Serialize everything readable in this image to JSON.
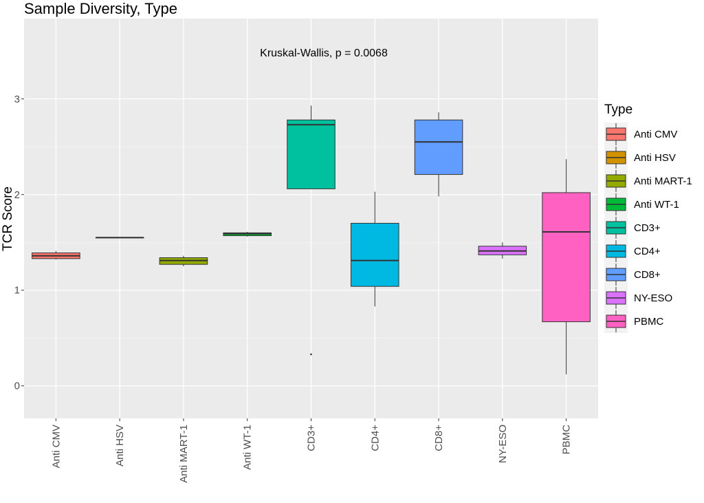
{
  "chart_data": {
    "type": "boxplot",
    "title": "Sample Diversity, Type",
    "xlabel": "",
    "ylabel": "TCR Score",
    "ylim": [
      -0.34,
      3.84
    ],
    "yticks": [
      0,
      1,
      2,
      3
    ],
    "annotation": "Kruskal-Wallis, p = 0.0068",
    "legend_title": "Type",
    "legend_position": "right",
    "grid": true,
    "categories": [
      "Anti CMV",
      "Anti HSV",
      "Anti MART-1",
      "Anti WT-1",
      "CD3+",
      "CD4+",
      "CD8+",
      "NY-ESO",
      "PBMC"
    ],
    "colors": [
      "#F8766D",
      "#D39200",
      "#93AA00",
      "#00BA38",
      "#00C19F",
      "#00B9E3",
      "#619CFF",
      "#DB72FB",
      "#FF61C3"
    ],
    "boxes": [
      {
        "name": "Anti CMV",
        "min": 1.32,
        "q1": 1.33,
        "median": 1.36,
        "q3": 1.39,
        "max": 1.41,
        "outliers": []
      },
      {
        "name": "Anti HSV",
        "min": 1.55,
        "q1": 1.55,
        "median": 1.55,
        "q3": 1.55,
        "max": 1.55,
        "outliers": []
      },
      {
        "name": "Anti MART-1",
        "min": 1.25,
        "q1": 1.27,
        "median": 1.31,
        "q3": 1.34,
        "max": 1.36,
        "outliers": []
      },
      {
        "name": "Anti WT-1",
        "min": 1.56,
        "q1": 1.57,
        "median": 1.59,
        "q3": 1.6,
        "max": 1.61,
        "outliers": []
      },
      {
        "name": "CD3+",
        "min": 2.06,
        "q1": 2.06,
        "median": 2.73,
        "q3": 2.78,
        "max": 2.93,
        "outliers": [
          0.33
        ]
      },
      {
        "name": "CD4+",
        "min": 0.83,
        "q1": 1.04,
        "median": 1.31,
        "q3": 1.7,
        "max": 2.03,
        "outliers": []
      },
      {
        "name": "CD8+",
        "min": 1.98,
        "q1": 2.21,
        "median": 2.55,
        "q3": 2.78,
        "max": 2.86,
        "outliers": []
      },
      {
        "name": "NY-ESO",
        "min": 1.33,
        "q1": 1.37,
        "median": 1.41,
        "q3": 1.46,
        "max": 1.5,
        "outliers": []
      },
      {
        "name": "PBMC",
        "min": 0.12,
        "q1": 0.67,
        "median": 1.61,
        "q3": 2.02,
        "max": 2.37,
        "outliers": []
      }
    ]
  }
}
